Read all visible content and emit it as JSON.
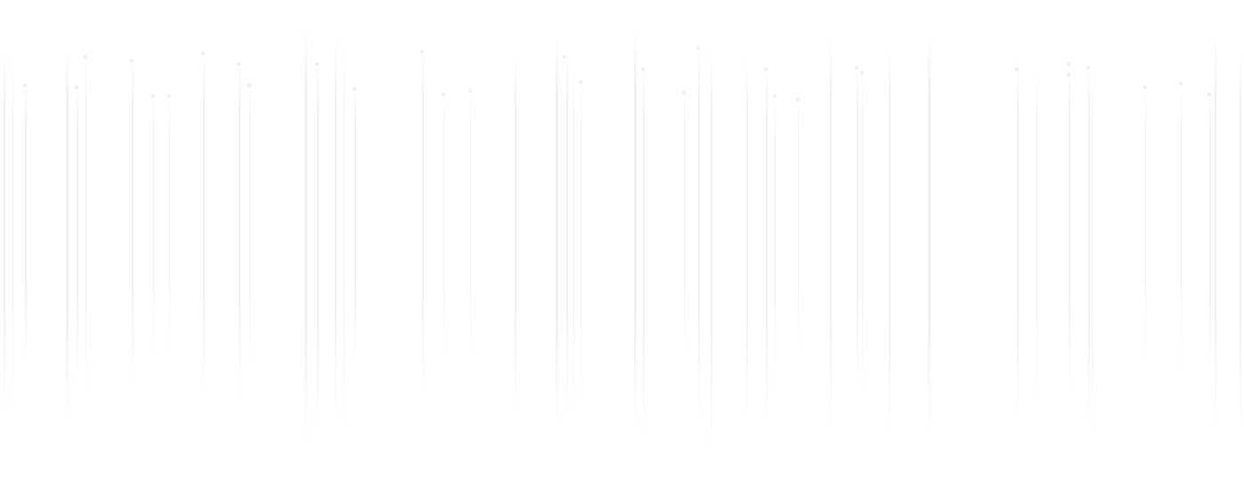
{
  "background": "#ffffff",
  "colors": {
    "streak": "#e9e9ee",
    "dot": "#e3e3e9"
  }
}
